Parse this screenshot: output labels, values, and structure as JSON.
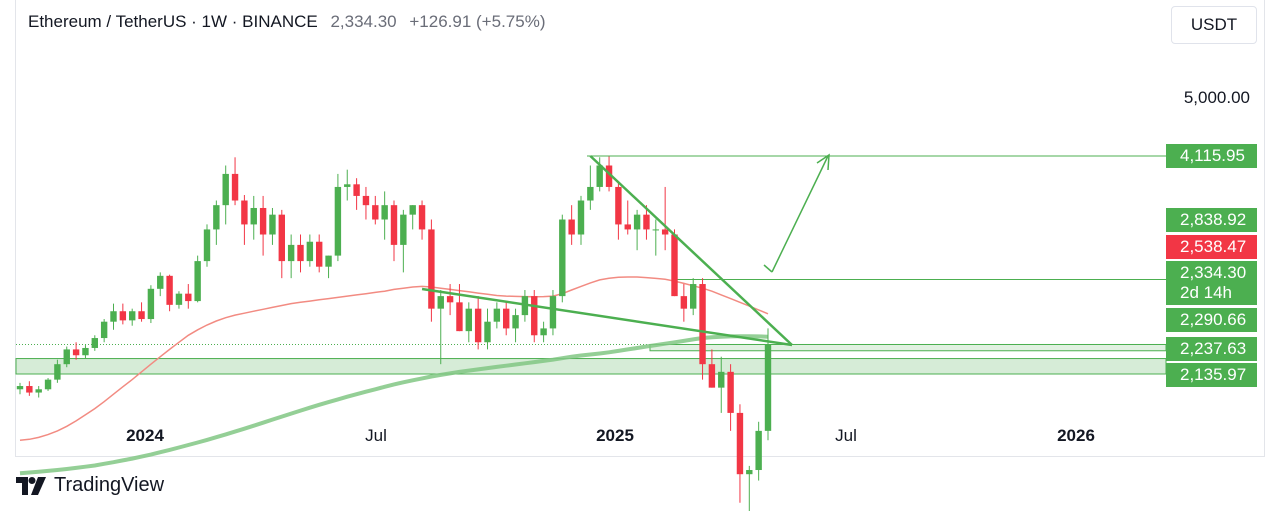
{
  "header": {
    "symbol": "Ethereum / TetherUS · 1W · BINANCE",
    "price": "2,334.30",
    "change": "+126.91 (+5.75%)"
  },
  "currency_button": "USDT",
  "price_tags": [
    {
      "label": "4,115.95",
      "color": "#4caf50"
    },
    {
      "label": "2,838.92",
      "color": "#4caf50"
    },
    {
      "label": "2,538.47",
      "color": "#f23645"
    },
    {
      "label": "2,334.30",
      "sublabel": "2d 14h",
      "color": "#4caf50"
    },
    {
      "label": "2,290.66",
      "color": "#4caf50"
    },
    {
      "label": "2,237.63",
      "color": "#4caf50"
    },
    {
      "label": "2,135.97",
      "color": "#4caf50"
    }
  ],
  "y_axis_ticks": [
    "5,000.00"
  ],
  "x_axis_ticks": [
    {
      "label": "2024",
      "bold": true
    },
    {
      "label": "Jul",
      "bold": false
    },
    {
      "label": "2025",
      "bold": true
    },
    {
      "label": "Jul",
      "bold": false
    },
    {
      "label": "2026",
      "bold": true
    }
  ],
  "branding": "TradingView",
  "chart_data": {
    "type": "candlestick",
    "interval": "1W",
    "y_scale": "log",
    "colors": {
      "up": "#4caf50",
      "down": "#f23645",
      "ma_fast": "#f28b82",
      "ma_slow": "#81c784"
    },
    "candles": [
      [
        2040,
        2080,
        2010,
        2060
      ],
      [
        2060,
        2090,
        2000,
        2020
      ],
      [
        2020,
        2060,
        1990,
        2040
      ],
      [
        2040,
        2110,
        2030,
        2100
      ],
      [
        2100,
        2230,
        2080,
        2200
      ],
      [
        2200,
        2320,
        2180,
        2300
      ],
      [
        2300,
        2350,
        2230,
        2260
      ],
      [
        2260,
        2330,
        2240,
        2310
      ],
      [
        2310,
        2400,
        2290,
        2380
      ],
      [
        2380,
        2520,
        2350,
        2500
      ],
      [
        2500,
        2640,
        2440,
        2580
      ],
      [
        2580,
        2640,
        2480,
        2510
      ],
      [
        2510,
        2600,
        2470,
        2580
      ],
      [
        2580,
        2650,
        2500,
        2520
      ],
      [
        2520,
        2790,
        2490,
        2760
      ],
      [
        2760,
        2900,
        2700,
        2870
      ],
      [
        2870,
        2880,
        2580,
        2630
      ],
      [
        2630,
        2740,
        2600,
        2720
      ],
      [
        2720,
        2800,
        2600,
        2660
      ],
      [
        2660,
        3050,
        2650,
        3000
      ],
      [
        3000,
        3350,
        2950,
        3300
      ],
      [
        3300,
        3600,
        3150,
        3550
      ],
      [
        3550,
        4000,
        3350,
        3900
      ],
      [
        3900,
        4100,
        3550,
        3600
      ],
      [
        3600,
        3660,
        3150,
        3350
      ],
      [
        3350,
        3650,
        3200,
        3520
      ],
      [
        3520,
        3650,
        3050,
        3250
      ],
      [
        3250,
        3520,
        3150,
        3450
      ],
      [
        3450,
        3500,
        2850,
        3000
      ],
      [
        3000,
        3250,
        2850,
        3150
      ],
      [
        3150,
        3250,
        2900,
        3000
      ],
      [
        3000,
        3250,
        2950,
        3180
      ],
      [
        3180,
        3250,
        2900,
        2950
      ],
      [
        2950,
        3050,
        2850,
        3050
      ],
      [
        3050,
        3900,
        3000,
        3750
      ],
      [
        3750,
        3950,
        3600,
        3780
      ],
      [
        3780,
        3850,
        3500,
        3650
      ],
      [
        3650,
        3750,
        3400,
        3550
      ],
      [
        3550,
        3650,
        3350,
        3400
      ],
      [
        3400,
        3700,
        3200,
        3550
      ],
      [
        3550,
        3600,
        3000,
        3150
      ],
      [
        3150,
        3500,
        2900,
        3450
      ],
      [
        3450,
        3550,
        3300,
        3550
      ],
      [
        3550,
        3600,
        3200,
        3300
      ],
      [
        3300,
        3400,
        2500,
        2600
      ],
      [
        2600,
        2750,
        2200,
        2700
      ],
      [
        2700,
        2800,
        2550,
        2650
      ],
      [
        2650,
        2800,
        2430,
        2430
      ],
      [
        2430,
        2650,
        2350,
        2600
      ],
      [
        2600,
        2700,
        2300,
        2350
      ],
      [
        2350,
        2600,
        2300,
        2500
      ],
      [
        2500,
        2650,
        2450,
        2600
      ],
      [
        2600,
        2650,
        2400,
        2450
      ],
      [
        2450,
        2600,
        2350,
        2550
      ],
      [
        2550,
        2750,
        2500,
        2700
      ],
      [
        2700,
        2750,
        2350,
        2400
      ],
      [
        2400,
        2500,
        2350,
        2450
      ],
      [
        2450,
        2750,
        2400,
        2700
      ],
      [
        2700,
        3450,
        2650,
        3400
      ],
      [
        3400,
        3550,
        3150,
        3250
      ],
      [
        3250,
        3650,
        3150,
        3600
      ],
      [
        3600,
        4000,
        3500,
        3750
      ],
      [
        3750,
        4100,
        3700,
        4000
      ],
      [
        4000,
        4110,
        3700,
        3750
      ],
      [
        3750,
        3800,
        3200,
        3350
      ],
      [
        3350,
        3600,
        3250,
        3300
      ],
      [
        3300,
        3500,
        3100,
        3450
      ],
      [
        3450,
        3550,
        3200,
        3300
      ],
      [
        3300,
        3400,
        3050,
        3300
      ],
      [
        3300,
        3750,
        3100,
        3250
      ],
      [
        3250,
        3300,
        2700,
        2700
      ],
      [
        2700,
        2800,
        2500,
        2600
      ],
      [
        2600,
        2850,
        2550,
        2800
      ],
      [
        2800,
        2850,
        2100,
        2200
      ],
      [
        2200,
        2300,
        2050,
        2050
      ],
      [
        2050,
        2250,
        1900,
        2150
      ],
      [
        2150,
        2200,
        1800,
        1900
      ],
      [
        1900,
        1950,
        1450,
        1580
      ],
      [
        1580,
        1620,
        1400,
        1600
      ],
      [
        1600,
        1850,
        1550,
        1800
      ],
      [
        1800,
        2450,
        1750,
        2334.3
      ]
    ],
    "ma_fast": [
      1750,
      1755,
      1765,
      1780,
      1800,
      1825,
      1855,
      1890,
      1925,
      1965,
      2010,
      2055,
      2100,
      2150,
      2200,
      2250,
      2300,
      2350,
      2400,
      2440,
      2475,
      2505,
      2530,
      2550,
      2565,
      2580,
      2595,
      2610,
      2625,
      2640,
      2650,
      2660,
      2670,
      2680,
      2690,
      2700,
      2710,
      2720,
      2730,
      2740,
      2755,
      2765,
      2775,
      2780,
      2775,
      2765,
      2755,
      2745,
      2735,
      2725,
      2715,
      2705,
      2700,
      2698,
      2696,
      2695,
      2696,
      2700,
      2720,
      2750,
      2780,
      2810,
      2835,
      2850,
      2858,
      2860,
      2860,
      2855,
      2848,
      2840,
      2825,
      2805,
      2785,
      2765,
      2740,
      2710,
      2680,
      2650,
      2620,
      2590,
      2560
    ],
    "ma_slow": [
      1585,
      1588,
      1592,
      1596,
      1600,
      1605,
      1610,
      1616,
      1622,
      1630,
      1638,
      1647,
      1656,
      1666,
      1676,
      1688,
      1700,
      1712,
      1725,
      1738,
      1752,
      1766,
      1781,
      1796,
      1812,
      1828,
      1845,
      1862,
      1879,
      1896,
      1913,
      1930,
      1947,
      1963,
      1979,
      1995,
      2010,
      2025,
      2040,
      2055,
      2070,
      2083,
      2096,
      2108,
      2120,
      2130,
      2140,
      2150,
      2158,
      2166,
      2174,
      2182,
      2190,
      2198,
      2206,
      2214,
      2222,
      2230,
      2240,
      2250,
      2258,
      2265,
      2272,
      2280,
      2290,
      2300,
      2310,
      2320,
      2330,
      2340,
      2350,
      2360,
      2370,
      2380,
      2386,
      2390,
      2392,
      2393,
      2393,
      2392,
      2390
    ],
    "levels": [
      4115.95,
      2838.92,
      2538.47,
      2334.3,
      2290.66,
      2237.63,
      2135.97
    ],
    "current_price": 2334.3,
    "countdown": "2d 14h",
    "x_ticks": [
      "2024",
      "Jul",
      "2025",
      "Jul",
      "2026"
    ]
  }
}
